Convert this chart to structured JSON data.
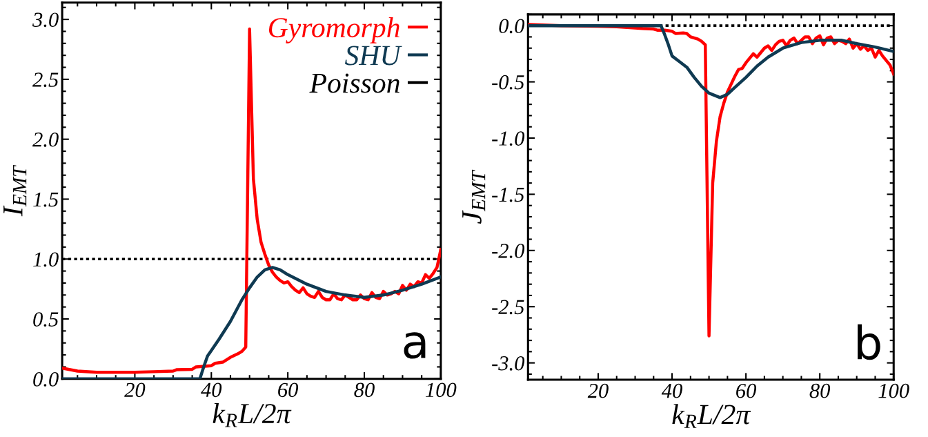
{
  "chart_data": [
    {
      "type": "line",
      "xlabel": "k$_{R}$L/2π",
      "ylabel": "I$_{EMT}$",
      "xlim": [
        1,
        100
      ],
      "xticks": [
        20,
        40,
        60,
        80,
        100
      ],
      "ylim": [
        0,
        3.14
      ],
      "yticks": [
        {
          "value": 0,
          "label": "0.0"
        },
        {
          "value": 0.5,
          "label": "0.5"
        },
        {
          "value": 1,
          "label": "1.0"
        },
        {
          "value": 1.5,
          "label": "1.5"
        },
        {
          "value": 2,
          "label": "2.0"
        },
        {
          "value": 2.5,
          "label": "2.5"
        },
        {
          "value": 3,
          "label": "3.0"
        }
      ],
      "grid": false,
      "legend": "top right",
      "annotations": [
        "a"
      ],
      "series": [
        {
          "name": "Gyromorph",
          "color": "#ff0000",
          "x": [
            1,
            5,
            10,
            20,
            25,
            30,
            31,
            35,
            36,
            40,
            41,
            43,
            45,
            47,
            48,
            49,
            50,
            51,
            52,
            53,
            54,
            55,
            56,
            57,
            58,
            59,
            60,
            61,
            62,
            63,
            64,
            65,
            66,
            67,
            68,
            69,
            70,
            71,
            72,
            73,
            74,
            75,
            76,
            77,
            78,
            79,
            80,
            81,
            82,
            83,
            84,
            85,
            86,
            87,
            88,
            89,
            90,
            91,
            92,
            93,
            94,
            95,
            96,
            97,
            98,
            99,
            100
          ],
          "values": [
            0.09,
            0.065,
            0.055,
            0.055,
            0.06,
            0.065,
            0.077,
            0.08,
            0.1,
            0.11,
            0.13,
            0.14,
            0.18,
            0.21,
            0.23,
            0.265,
            2.92,
            1.67,
            1.33,
            1.14,
            1.04,
            0.95,
            0.89,
            0.85,
            0.82,
            0.8,
            0.81,
            0.77,
            0.74,
            0.72,
            0.76,
            0.71,
            0.69,
            0.68,
            0.73,
            0.68,
            0.66,
            0.66,
            0.71,
            0.67,
            0.66,
            0.7,
            0.68,
            0.66,
            0.66,
            0.7,
            0.67,
            0.66,
            0.72,
            0.68,
            0.67,
            0.73,
            0.7,
            0.71,
            0.73,
            0.71,
            0.78,
            0.74,
            0.79,
            0.77,
            0.81,
            0.8,
            0.87,
            0.84,
            0.88,
            0.93,
            1.08
          ]
        },
        {
          "name": "SHU",
          "color": "#0f3a52",
          "x": [
            1,
            37,
            38,
            39,
            42,
            45,
            48,
            50,
            52,
            54,
            56,
            58,
            60,
            65,
            70,
            75,
            80,
            85,
            90,
            95,
            100
          ],
          "values": [
            0,
            0,
            0.1,
            0.19,
            0.33,
            0.48,
            0.66,
            0.76,
            0.85,
            0.91,
            0.93,
            0.91,
            0.87,
            0.79,
            0.73,
            0.7,
            0.68,
            0.7,
            0.74,
            0.79,
            0.85
          ]
        },
        {
          "name": "Poisson",
          "color": "#000000",
          "line_style": "dotted",
          "x": [
            1,
            100
          ],
          "values": [
            1,
            1
          ]
        }
      ]
    },
    {
      "type": "line",
      "xlabel": "k$_{R}$L/2π",
      "ylabel": "J$_{EMT}$",
      "xlim": [
        1,
        100
      ],
      "xticks": [
        20,
        40,
        60,
        80,
        100
      ],
      "ylim": [
        -3.15,
        0.1
      ],
      "yticks": [
        {
          "value": -3,
          "label": "-3.0"
        },
        {
          "value": -2.5,
          "label": "-2.5"
        },
        {
          "value": -2,
          "label": "-2.0"
        },
        {
          "value": -1.5,
          "label": "-1.5"
        },
        {
          "value": -1,
          "label": "-1.0"
        },
        {
          "value": -0.5,
          "label": "-0.5"
        },
        {
          "value": 0,
          "label": "0.0"
        }
      ],
      "grid": false,
      "annotations": [
        "b"
      ],
      "series": [
        {
          "color": "#ff0000",
          "x": [
            1,
            10,
            20,
            25,
            30,
            32,
            35,
            36,
            38,
            40,
            41,
            43,
            44,
            45,
            47,
            48,
            49,
            50,
            51,
            52,
            53,
            54,
            55,
            56,
            57,
            58,
            59,
            60,
            61,
            62,
            63,
            64,
            65,
            66,
            67,
            68,
            69,
            70,
            71,
            72,
            73,
            74,
            75,
            76,
            77,
            78,
            79,
            80,
            81,
            82,
            83,
            84,
            85,
            86,
            87,
            88,
            89,
            90,
            91,
            92,
            93,
            94,
            95,
            96,
            97,
            98,
            99,
            100
          ],
          "values": [
            0.01,
            0,
            -0.005,
            -0.01,
            -0.02,
            -0.025,
            -0.03,
            -0.04,
            -0.04,
            -0.05,
            -0.07,
            -0.065,
            -0.07,
            -0.1,
            -0.12,
            -0.14,
            -0.17,
            -2.76,
            -1.4,
            -1.03,
            -0.81,
            -0.69,
            -0.59,
            -0.52,
            -0.45,
            -0.39,
            -0.38,
            -0.33,
            -0.29,
            -0.25,
            -0.28,
            -0.24,
            -0.2,
            -0.18,
            -0.22,
            -0.17,
            -0.14,
            -0.13,
            -0.18,
            -0.13,
            -0.11,
            -0.16,
            -0.13,
            -0.1,
            -0.1,
            -0.16,
            -0.11,
            -0.09,
            -0.17,
            -0.11,
            -0.1,
            -0.16,
            -0.13,
            -0.14,
            -0.16,
            -0.12,
            -0.2,
            -0.16,
            -0.21,
            -0.18,
            -0.22,
            -0.2,
            -0.28,
            -0.22,
            -0.27,
            -0.31,
            -0.35,
            -0.43
          ]
        },
        {
          "color": "#0f3a52",
          "x": [
            1,
            37,
            38,
            39,
            40,
            42,
            44,
            46,
            48,
            50,
            53,
            55,
            57,
            60,
            63,
            66,
            70,
            75,
            80,
            83,
            86,
            90,
            95,
            100
          ],
          "values": [
            0,
            0,
            -0.08,
            -0.17,
            -0.27,
            -0.32,
            -0.37,
            -0.46,
            -0.54,
            -0.6,
            -0.64,
            -0.61,
            -0.55,
            -0.46,
            -0.36,
            -0.28,
            -0.2,
            -0.15,
            -0.13,
            -0.13,
            -0.13,
            -0.16,
            -0.19,
            -0.23
          ]
        },
        {
          "color": "#000000",
          "line_style": "dotted",
          "x": [
            1,
            100
          ],
          "values": [
            0,
            0
          ]
        }
      ]
    }
  ]
}
